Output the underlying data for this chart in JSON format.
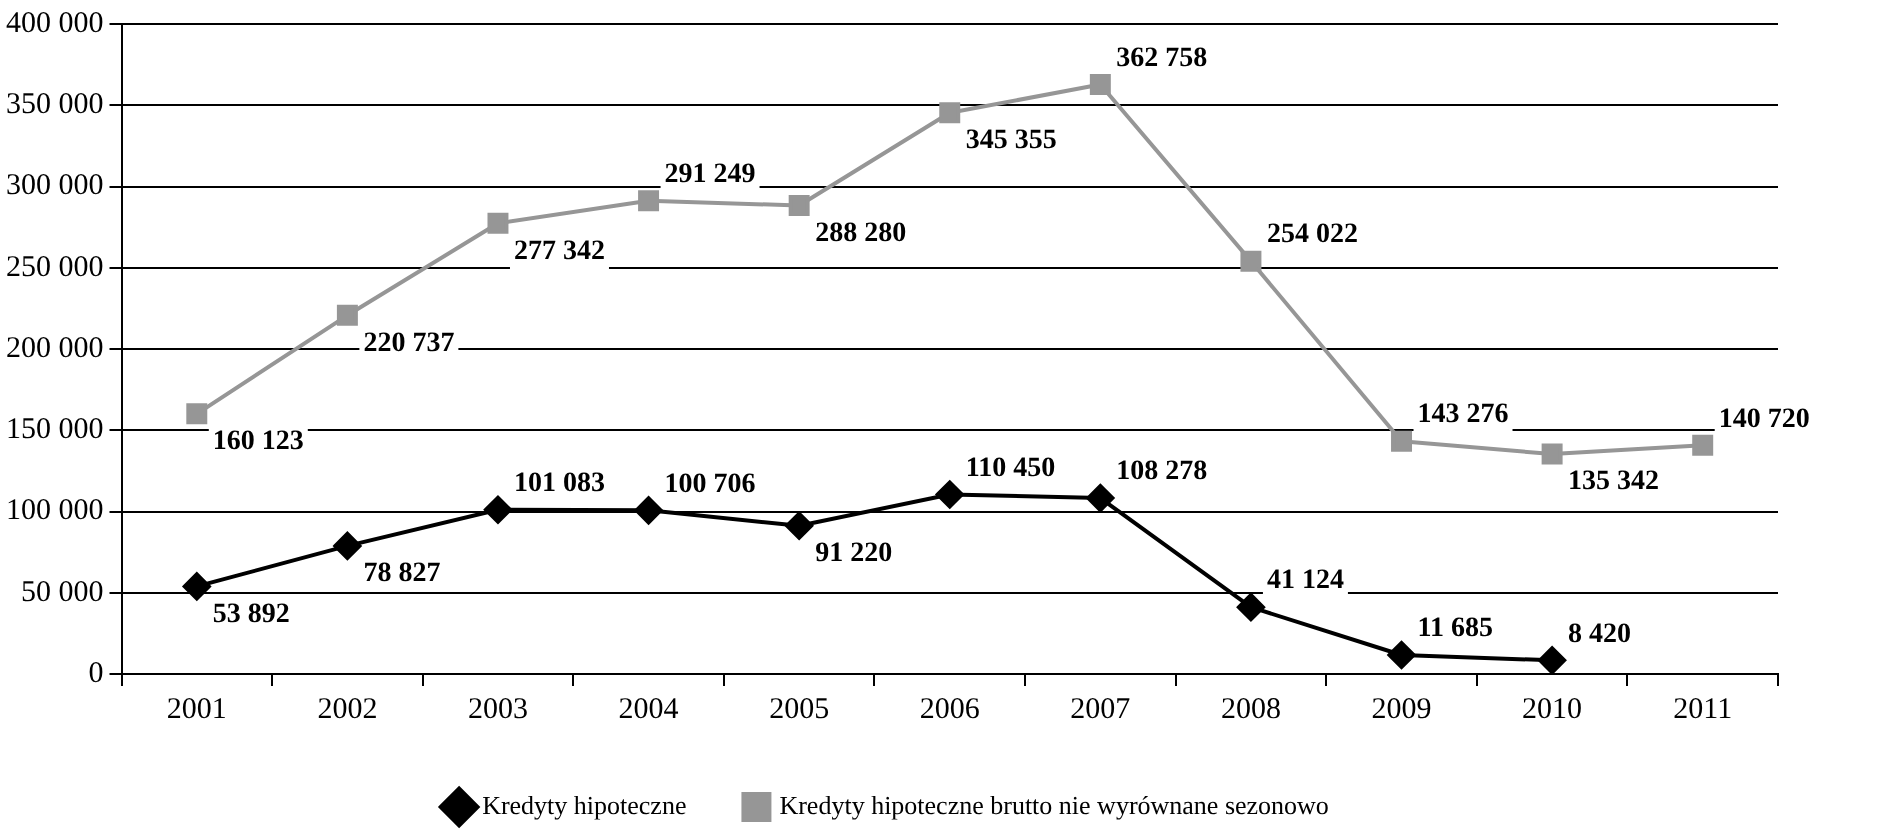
{
  "chart_data": {
    "type": "line",
    "categories": [
      "2001",
      "2002",
      "2003",
      "2004",
      "2005",
      "2006",
      "2007",
      "2008",
      "2009",
      "2010",
      "2011"
    ],
    "series": [
      {
        "name": "Kredyty hipoteczne",
        "color": "#000000",
        "marker": "diamond",
        "values": [
          53892,
          78827,
          101083,
          100706,
          91220,
          110450,
          108278,
          41124,
          11685,
          8420,
          null
        ],
        "value_labels": [
          "53 892",
          "78 827",
          "101 083",
          "100 706",
          "91 220",
          "110 450",
          "108 278",
          "41 124",
          "11 685",
          "8 420",
          null
        ]
      },
      {
        "name": "Kredyty hipoteczne brutto nie wyrównane sezonowo",
        "color": "#969696",
        "marker": "square",
        "values": [
          160123,
          220737,
          277342,
          291249,
          288280,
          345355,
          362758,
          254022,
          143276,
          135342,
          140720
        ],
        "value_labels": [
          "160 123",
          "220 737",
          "277 342",
          "291 249",
          "288 280",
          "345 355",
          "362 758",
          "254 022",
          "143 276",
          "135 342",
          "140 720"
        ]
      }
    ],
    "ylim": [
      0,
      400000
    ],
    "yticks": [
      {
        "value": 0,
        "label": "0"
      },
      {
        "value": 50000,
        "label": "50 000"
      },
      {
        "value": 100000,
        "label": "100 000"
      },
      {
        "value": 150000,
        "label": "150 000"
      },
      {
        "value": 200000,
        "label": "200 000"
      },
      {
        "value": 250000,
        "label": "250 000"
      },
      {
        "value": 300000,
        "label": "300 000"
      },
      {
        "value": 350000,
        "label": "350 000"
      },
      {
        "value": 400000,
        "label": "400 000"
      }
    ],
    "grid": "y",
    "legend": "bottom",
    "line_style": "solid"
  }
}
